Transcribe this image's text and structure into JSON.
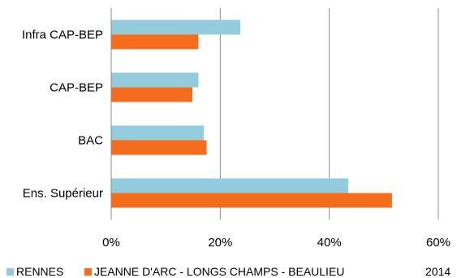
{
  "chart_data": {
    "type": "bar",
    "orientation": "horizontal",
    "title": "",
    "xlabel": "",
    "ylabel": "",
    "categories": [
      "Infra CAP-BEP",
      "CAP-BEP",
      "BAC",
      "Ens. Supérieur"
    ],
    "series": [
      {
        "name": "RENNES",
        "color": "#93cddd",
        "values": [
          23.7,
          16.0,
          17.0,
          43.5
        ]
      },
      {
        "name": "JEANNE D'ARC - LONGS CHAMPS - BEAULIEU",
        "color": "#f56c1c",
        "values": [
          16.0,
          14.9,
          17.5,
          51.5
        ]
      }
    ],
    "xlim": [
      0,
      60
    ],
    "xticks": [
      0,
      20,
      40,
      60
    ],
    "xtick_labels": [
      "0%",
      "20%",
      "40%",
      "60%"
    ],
    "grid": "vertical gridlines",
    "legend_position": "bottom",
    "annotation": "2014"
  }
}
